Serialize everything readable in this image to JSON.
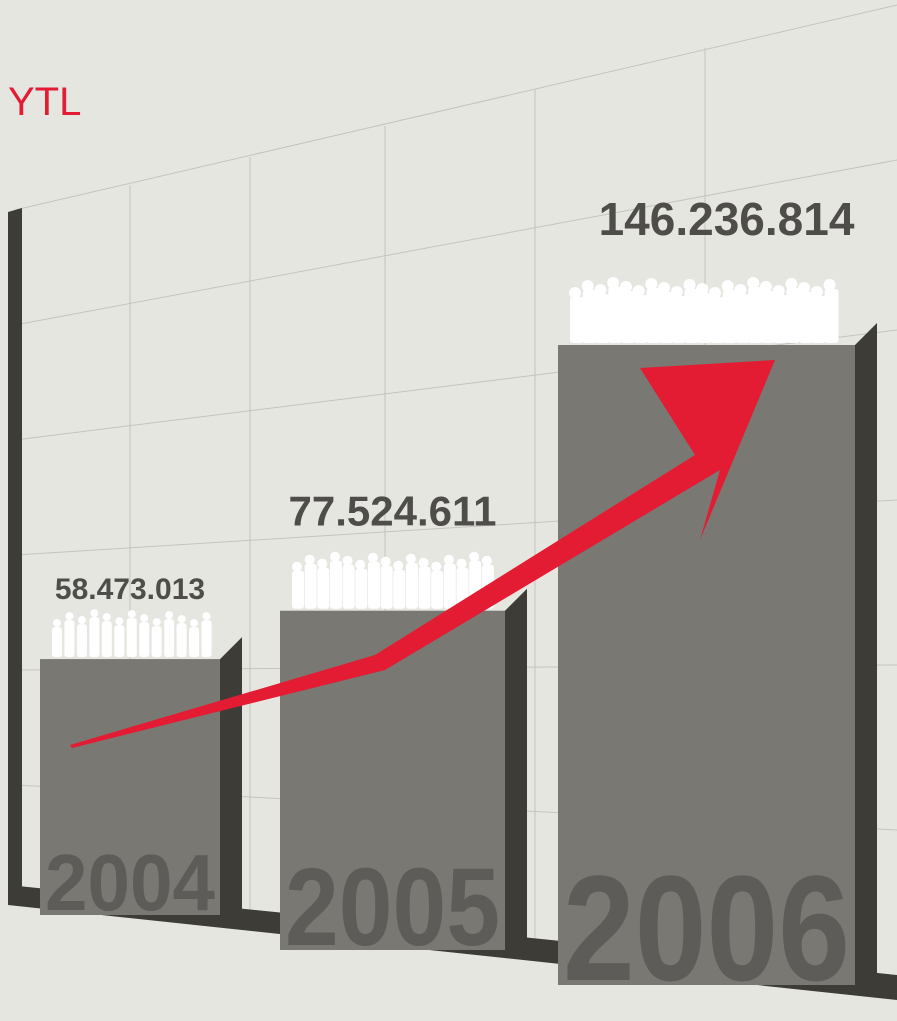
{
  "chart_data": {
    "type": "bar",
    "ylabel": "YTL",
    "categories": [
      "2004",
      "2005",
      "2006"
    ],
    "values": [
      58473013,
      77524611,
      146236814
    ],
    "value_labels": [
      "58.473.013",
      "77.524.611",
      "146.236.814"
    ],
    "color": "#7a7873"
  }
}
